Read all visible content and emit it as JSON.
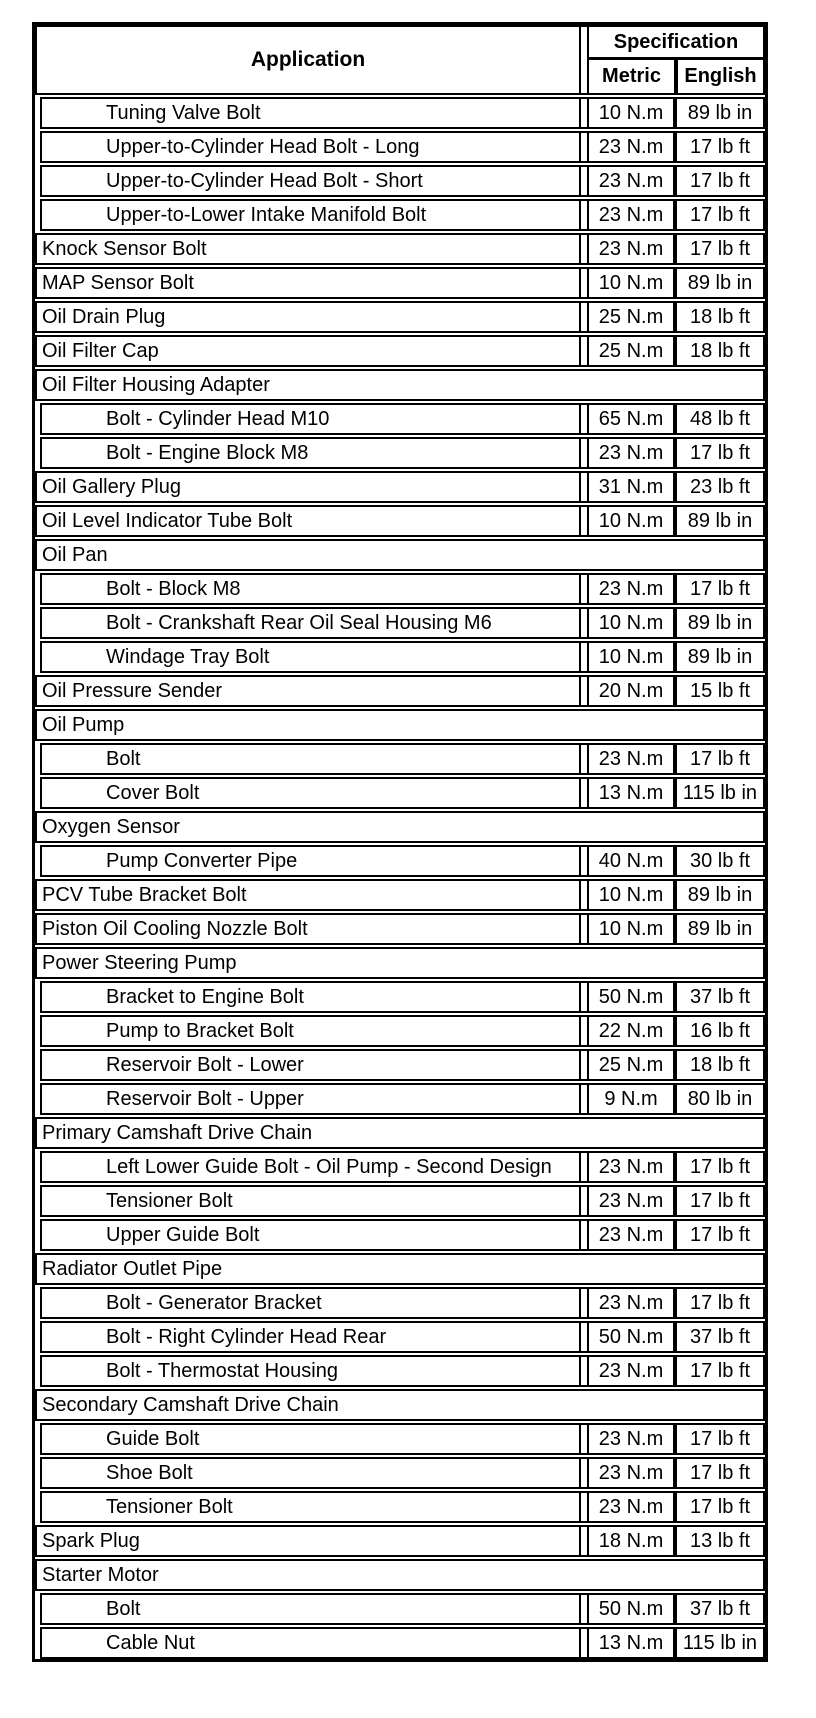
{
  "table": {
    "header": {
      "application_label": "Application",
      "specification_label": "Specification",
      "metric_label": "Metric",
      "english_label": "English"
    },
    "colors": {
      "border": "#000000",
      "background": "#ffffff",
      "text": "#000000"
    },
    "rows": [
      {
        "type": "item",
        "indent": true,
        "application": "Tuning Valve Bolt",
        "metric": "10 N.m",
        "english": "89 lb in"
      },
      {
        "type": "item",
        "indent": true,
        "application": "Upper-to-Cylinder Head Bolt - Long",
        "metric": "23 N.m",
        "english": "17 lb ft"
      },
      {
        "type": "item",
        "indent": true,
        "application": "Upper-to-Cylinder Head Bolt - Short",
        "metric": "23 N.m",
        "english": "17 lb ft"
      },
      {
        "type": "item",
        "indent": true,
        "application": "Upper-to-Lower Intake Manifold Bolt",
        "metric": "23 N.m",
        "english": "17 lb ft"
      },
      {
        "type": "item",
        "indent": false,
        "application": "Knock Sensor Bolt",
        "metric": "23 N.m",
        "english": "17 lb ft"
      },
      {
        "type": "item",
        "indent": false,
        "application": "MAP Sensor Bolt",
        "metric": "10 N.m",
        "english": "89 lb in"
      },
      {
        "type": "item",
        "indent": false,
        "application": "Oil Drain Plug",
        "metric": "25 N.m",
        "english": "18 lb ft"
      },
      {
        "type": "item",
        "indent": false,
        "application": "Oil Filter Cap",
        "metric": "25 N.m",
        "english": "18 lb ft"
      },
      {
        "type": "section",
        "indent": false,
        "application": "Oil Filter Housing Adapter",
        "metric": "",
        "english": ""
      },
      {
        "type": "item",
        "indent": true,
        "application": "Bolt - Cylinder Head M10",
        "metric": "65 N.m",
        "english": "48 lb ft"
      },
      {
        "type": "item",
        "indent": true,
        "application": "Bolt - Engine Block M8",
        "metric": "23 N.m",
        "english": "17 lb ft"
      },
      {
        "type": "item",
        "indent": false,
        "application": "Oil Gallery Plug",
        "metric": "31 N.m",
        "english": "23 lb ft"
      },
      {
        "type": "item",
        "indent": false,
        "application": "Oil Level Indicator Tube Bolt",
        "metric": "10 N.m",
        "english": "89 lb in"
      },
      {
        "type": "section",
        "indent": false,
        "application": "Oil Pan",
        "metric": "",
        "english": ""
      },
      {
        "type": "item",
        "indent": true,
        "application": "Bolt - Block M8",
        "metric": "23 N.m",
        "english": "17 lb ft"
      },
      {
        "type": "item",
        "indent": true,
        "application": "Bolt - Crankshaft Rear Oil Seal Housing M6",
        "metric": "10 N.m",
        "english": "89 lb in"
      },
      {
        "type": "item",
        "indent": true,
        "application": "Windage Tray Bolt",
        "metric": "10 N.m",
        "english": "89 lb in"
      },
      {
        "type": "item",
        "indent": false,
        "application": "Oil Pressure Sender",
        "metric": "20 N.m",
        "english": "15 lb ft"
      },
      {
        "type": "section",
        "indent": false,
        "application": "Oil Pump",
        "metric": "",
        "english": ""
      },
      {
        "type": "item",
        "indent": true,
        "application": "Bolt",
        "metric": "23 N.m",
        "english": "17 lb ft"
      },
      {
        "type": "item",
        "indent": true,
        "application": "Cover Bolt",
        "metric": "13 N.m",
        "english": "115 lb in"
      },
      {
        "type": "section",
        "indent": false,
        "application": "Oxygen Sensor",
        "metric": "",
        "english": ""
      },
      {
        "type": "item",
        "indent": true,
        "application": "Pump Converter Pipe",
        "metric": "40 N.m",
        "english": "30 lb ft"
      },
      {
        "type": "item",
        "indent": false,
        "application": "PCV Tube Bracket Bolt",
        "metric": "10 N.m",
        "english": "89 lb in"
      },
      {
        "type": "item",
        "indent": false,
        "application": "Piston Oil Cooling Nozzle Bolt",
        "metric": "10 N.m",
        "english": "89 lb in"
      },
      {
        "type": "section",
        "indent": false,
        "application": "Power Steering Pump",
        "metric": "",
        "english": ""
      },
      {
        "type": "item",
        "indent": true,
        "application": "Bracket to Engine Bolt",
        "metric": "50 N.m",
        "english": "37 lb ft"
      },
      {
        "type": "item",
        "indent": true,
        "application": "Pump to Bracket Bolt",
        "metric": "22 N.m",
        "english": "16 lb ft"
      },
      {
        "type": "item",
        "indent": true,
        "application": "Reservoir Bolt - Lower",
        "metric": "25 N.m",
        "english": "18 lb ft"
      },
      {
        "type": "item",
        "indent": true,
        "application": "Reservoir Bolt - Upper",
        "metric": "9 N.m",
        "english": "80 lb in"
      },
      {
        "type": "section",
        "indent": false,
        "application": "Primary Camshaft Drive Chain",
        "metric": "",
        "english": ""
      },
      {
        "type": "item",
        "indent": true,
        "application": "Left Lower Guide Bolt - Oil Pump - Second Design",
        "metric": "23 N.m",
        "english": "17 lb ft"
      },
      {
        "type": "item",
        "indent": true,
        "application": "Tensioner Bolt",
        "metric": "23 N.m",
        "english": "17 lb ft"
      },
      {
        "type": "item",
        "indent": true,
        "application": "Upper Guide Bolt",
        "metric": "23 N.m",
        "english": "17 lb ft"
      },
      {
        "type": "section",
        "indent": false,
        "application": "Radiator Outlet Pipe",
        "metric": "",
        "english": ""
      },
      {
        "type": "item",
        "indent": true,
        "application": "Bolt - Generator Bracket",
        "metric": "23 N.m",
        "english": "17 lb ft"
      },
      {
        "type": "item",
        "indent": true,
        "application": "Bolt - Right Cylinder Head Rear",
        "metric": "50 N.m",
        "english": "37 lb ft"
      },
      {
        "type": "item",
        "indent": true,
        "application": "Bolt - Thermostat Housing",
        "metric": "23 N.m",
        "english": "17 lb ft"
      },
      {
        "type": "section",
        "indent": false,
        "application": "Secondary Camshaft Drive Chain",
        "metric": "",
        "english": ""
      },
      {
        "type": "item",
        "indent": true,
        "application": "Guide Bolt",
        "metric": "23 N.m",
        "english": "17 lb ft"
      },
      {
        "type": "item",
        "indent": true,
        "application": "Shoe Bolt",
        "metric": "23 N.m",
        "english": "17 lb ft"
      },
      {
        "type": "item",
        "indent": true,
        "application": "Tensioner Bolt",
        "metric": "23 N.m",
        "english": "17 lb ft"
      },
      {
        "type": "item",
        "indent": false,
        "application": "Spark Plug",
        "metric": "18 N.m",
        "english": "13 lb ft"
      },
      {
        "type": "section",
        "indent": false,
        "application": "Starter Motor",
        "metric": "",
        "english": ""
      },
      {
        "type": "item",
        "indent": true,
        "application": "Bolt",
        "metric": "50 N.m",
        "english": "37 lb ft"
      },
      {
        "type": "item",
        "indent": true,
        "application": "Cable Nut",
        "metric": "13 N.m",
        "english": "115 lb in"
      }
    ]
  }
}
